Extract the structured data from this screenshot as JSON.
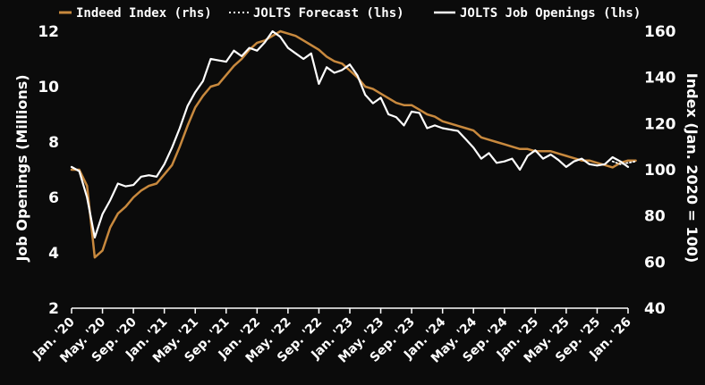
{
  "chart_data": {
    "type": "line",
    "title": "",
    "colors": {
      "background": "#0b0b0b",
      "indeed": "#c8893e",
      "jolts": "#ffffff",
      "forecast": "#ffffff",
      "axis": "#ffffff"
    },
    "legend": {
      "placement": "top-left",
      "entries": [
        {
          "key": "indeed",
          "label": "Indeed Index (rhs)",
          "style": "solid"
        },
        {
          "key": "forecast",
          "label": "JOLTS Forecast (lhs)",
          "style": "dotted"
        },
        {
          "key": "jolts",
          "label": "JOLTS Job Openings (lhs)",
          "style": "solid"
        }
      ]
    },
    "ylabel_left": "Job Openings (Millions)",
    "ylabel_right": "Index (Jan. 2020 = 100)",
    "ylim_left": [
      2,
      12
    ],
    "ylim_right": [
      40,
      160
    ],
    "yticks_left": [
      "2",
      "4",
      "6",
      "8",
      "10",
      "12"
    ],
    "yticks_right": [
      "40",
      "60",
      "80",
      "100",
      "120",
      "140",
      "160"
    ],
    "xlim": [
      "2020-01",
      "2026-01"
    ],
    "xticks": [
      {
        "date": "2020-01",
        "label": "Jan. '20"
      },
      {
        "date": "2020-05",
        "label": "May. '20"
      },
      {
        "date": "2020-09",
        "label": "Sep. '20"
      },
      {
        "date": "2021-01",
        "label": "Jan. '21"
      },
      {
        "date": "2021-05",
        "label": "May. '21"
      },
      {
        "date": "2021-09",
        "label": "Sep. '21"
      },
      {
        "date": "2022-01",
        "label": "Jan. '22"
      },
      {
        "date": "2022-05",
        "label": "May. '22"
      },
      {
        "date": "2022-09",
        "label": "Sep. '22"
      },
      {
        "date": "2023-01",
        "label": "Jan. '23"
      },
      {
        "date": "2023-05",
        "label": "May. '23"
      },
      {
        "date": "2023-09",
        "label": "Sep. '23"
      },
      {
        "date": "2024-01",
        "label": "Jan. '24"
      },
      {
        "date": "2024-05",
        "label": "May. '24"
      },
      {
        "date": "2024-09",
        "label": "Sep. '24"
      },
      {
        "date": "2025-01",
        "label": "Jan. '25"
      },
      {
        "date": "2025-05",
        "label": "May. '25"
      },
      {
        "date": "2025-09",
        "label": "Sep. '25"
      },
      {
        "date": "2026-01",
        "label": "Jan. '26"
      }
    ],
    "grid": false,
    "series": [
      {
        "key": "jolts",
        "name": "JOLTS Job Openings (lhs)",
        "axis": "left",
        "points": [
          [
            "2020-01",
            7.1
          ],
          [
            "2020-02",
            6.95
          ],
          [
            "2020-03",
            6.0
          ],
          [
            "2020-04",
            4.55
          ],
          [
            "2020-05",
            5.4
          ],
          [
            "2020-06",
            5.9
          ],
          [
            "2020-07",
            6.5
          ],
          [
            "2020-08",
            6.4
          ],
          [
            "2020-09",
            6.45
          ],
          [
            "2020-10",
            6.75
          ],
          [
            "2020-11",
            6.8
          ],
          [
            "2020-12",
            6.75
          ],
          [
            "2021-01",
            7.2
          ],
          [
            "2021-02",
            7.8
          ],
          [
            "2021-03",
            8.5
          ],
          [
            "2021-04",
            9.3
          ],
          [
            "2021-05",
            9.8
          ],
          [
            "2021-06",
            10.2
          ],
          [
            "2021-07",
            11.0
          ],
          [
            "2021-08",
            10.95
          ],
          [
            "2021-09",
            10.9
          ],
          [
            "2021-10",
            11.3
          ],
          [
            "2021-11",
            11.1
          ],
          [
            "2021-12",
            11.4
          ],
          [
            "2022-01",
            11.3
          ],
          [
            "2022-02",
            11.6
          ],
          [
            "2022-03",
            12.0
          ],
          [
            "2022-04",
            11.8
          ],
          [
            "2022-05",
            11.4
          ],
          [
            "2022-06",
            11.2
          ],
          [
            "2022-07",
            11.0
          ],
          [
            "2022-08",
            11.2
          ],
          [
            "2022-09",
            10.1
          ],
          [
            "2022-10",
            10.7
          ],
          [
            "2022-11",
            10.5
          ],
          [
            "2022-12",
            10.6
          ],
          [
            "2023-01",
            10.8
          ],
          [
            "2023-02",
            10.4
          ],
          [
            "2023-03",
            9.7
          ],
          [
            "2023-04",
            9.4
          ],
          [
            "2023-05",
            9.6
          ],
          [
            "2023-06",
            9.0
          ],
          [
            "2023-07",
            8.9
          ],
          [
            "2023-08",
            8.6
          ],
          [
            "2023-09",
            9.1
          ],
          [
            "2023-10",
            9.05
          ],
          [
            "2023-11",
            8.5
          ],
          [
            "2023-12",
            8.6
          ],
          [
            "2024-01",
            8.5
          ],
          [
            "2024-02",
            8.45
          ],
          [
            "2024-03",
            8.4
          ],
          [
            "2024-04",
            8.1
          ],
          [
            "2024-05",
            7.8
          ],
          [
            "2024-06",
            7.4
          ],
          [
            "2024-07",
            7.6
          ],
          [
            "2024-08",
            7.25
          ],
          [
            "2024-09",
            7.3
          ],
          [
            "2024-10",
            7.4
          ],
          [
            "2024-11",
            7.0
          ],
          [
            "2024-12",
            7.5
          ],
          [
            "2025-01",
            7.7
          ],
          [
            "2025-02",
            7.4
          ],
          [
            "2025-03",
            7.55
          ],
          [
            "2025-04",
            7.35
          ],
          [
            "2025-05",
            7.1
          ],
          [
            "2025-06",
            7.3
          ],
          [
            "2025-07",
            7.4
          ],
          [
            "2025-08",
            7.2
          ],
          [
            "2025-09",
            7.15
          ],
          [
            "2025-10",
            7.2
          ],
          [
            "2025-11",
            7.45
          ],
          [
            "2025-12",
            7.3
          ],
          [
            "2026-01",
            7.1
          ]
        ]
      },
      {
        "key": "forecast",
        "name": "JOLTS Forecast (lhs)",
        "axis": "left",
        "points": [
          [
            "2025-11",
            7.3
          ],
          [
            "2025-12",
            7.2
          ],
          [
            "2026-01",
            7.25
          ],
          [
            "2026-02",
            7.3
          ]
        ]
      },
      {
        "key": "indeed",
        "name": "Indeed Index (rhs)",
        "axis": "right",
        "points": [
          [
            "2020-01",
            100.0
          ],
          [
            "2020-02",
            100.0
          ],
          [
            "2020-03",
            93.0
          ],
          [
            "2020-04",
            62.0
          ],
          [
            "2020-05",
            65.0
          ],
          [
            "2020-06",
            75.0
          ],
          [
            "2020-07",
            81.0
          ],
          [
            "2020-08",
            84.0
          ],
          [
            "2020-09",
            88.0
          ],
          [
            "2020-10",
            91.0
          ],
          [
            "2020-11",
            93.0
          ],
          [
            "2020-12",
            94.0
          ],
          [
            "2021-01",
            98.0
          ],
          [
            "2021-02",
            102.0
          ],
          [
            "2021-03",
            110.0
          ],
          [
            "2021-04",
            119.0
          ],
          [
            "2021-05",
            127.0
          ],
          [
            "2021-06",
            132.0
          ],
          [
            "2021-07",
            136.0
          ],
          [
            "2021-08",
            137.0
          ],
          [
            "2021-09",
            141.0
          ],
          [
            "2021-10",
            145.0
          ],
          [
            "2021-11",
            148.0
          ],
          [
            "2021-12",
            152.0
          ],
          [
            "2022-01",
            155.0
          ],
          [
            "2022-02",
            156.0
          ],
          [
            "2022-03",
            158.0
          ],
          [
            "2022-04",
            160.0
          ],
          [
            "2022-05",
            159.0
          ],
          [
            "2022-06",
            158.0
          ],
          [
            "2022-07",
            156.0
          ],
          [
            "2022-08",
            154.0
          ],
          [
            "2022-09",
            152.0
          ],
          [
            "2022-10",
            149.0
          ],
          [
            "2022-11",
            147.0
          ],
          [
            "2022-12",
            146.0
          ],
          [
            "2023-01",
            143.0
          ],
          [
            "2023-02",
            140.0
          ],
          [
            "2023-03",
            136.0
          ],
          [
            "2023-04",
            135.0
          ],
          [
            "2023-05",
            133.0
          ],
          [
            "2023-06",
            131.0
          ],
          [
            "2023-07",
            129.0
          ],
          [
            "2023-08",
            128.0
          ],
          [
            "2023-09",
            128.0
          ],
          [
            "2023-10",
            126.0
          ],
          [
            "2023-11",
            124.0
          ],
          [
            "2023-12",
            123.0
          ],
          [
            "2024-01",
            121.0
          ],
          [
            "2024-02",
            120.0
          ],
          [
            "2024-03",
            119.0
          ],
          [
            "2024-04",
            118.0
          ],
          [
            "2024-05",
            117.0
          ],
          [
            "2024-06",
            114.0
          ],
          [
            "2024-07",
            113.0
          ],
          [
            "2024-08",
            112.0
          ],
          [
            "2024-09",
            111.0
          ],
          [
            "2024-10",
            110.0
          ],
          [
            "2024-11",
            109.0
          ],
          [
            "2024-12",
            109.0
          ],
          [
            "2025-01",
            108.0
          ],
          [
            "2025-02",
            108.0
          ],
          [
            "2025-03",
            108.0
          ],
          [
            "2025-04",
            107.0
          ],
          [
            "2025-05",
            106.0
          ],
          [
            "2025-06",
            105.0
          ],
          [
            "2025-07",
            104.0
          ],
          [
            "2025-08",
            104.0
          ],
          [
            "2025-09",
            103.0
          ],
          [
            "2025-10",
            102.0
          ],
          [
            "2025-11",
            101.0
          ],
          [
            "2025-12",
            103.0
          ],
          [
            "2026-01",
            104.0
          ],
          [
            "2026-02",
            104.0
          ]
        ]
      }
    ]
  }
}
